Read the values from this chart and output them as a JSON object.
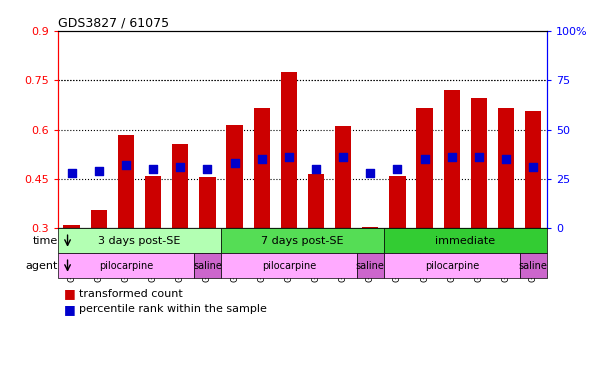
{
  "title": "GDS3827 / 61075",
  "samples": [
    "GSM367527",
    "GSM367528",
    "GSM367531",
    "GSM367532",
    "GSM367534",
    "GSM367718",
    "GSM367536",
    "GSM367538",
    "GSM367539",
    "GSM367540",
    "GSM367541",
    "GSM367719",
    "GSM367545",
    "GSM367546",
    "GSM367548",
    "GSM367549",
    "GSM367551",
    "GSM367721"
  ],
  "transformed_count": [
    0.31,
    0.355,
    0.585,
    0.46,
    0.555,
    0.455,
    0.615,
    0.665,
    0.775,
    0.465,
    0.61,
    0.305,
    0.46,
    0.665,
    0.72,
    0.695,
    0.665,
    0.655
  ],
  "percentile_rank": [
    28,
    29,
    32,
    30,
    31,
    30,
    33,
    35,
    36,
    30,
    36,
    28,
    30,
    35,
    36,
    36,
    35,
    31
  ],
  "bar_color": "#cc0000",
  "dot_color": "#0000cc",
  "ylim_left": [
    0.3,
    0.9
  ],
  "ylim_right": [
    0,
    100
  ],
  "yticks_left": [
    0.3,
    0.45,
    0.6,
    0.75,
    0.9
  ],
  "yticks_right": [
    0,
    25,
    50,
    75,
    100
  ],
  "ytick_labels_left": [
    "0.3",
    "0.45",
    "0.6",
    "0.75",
    "0.9"
  ],
  "ytick_labels_right": [
    "0",
    "25",
    "50",
    "75",
    "100%"
  ],
  "time_data": [
    {
      "label": "3 days post-SE",
      "start": 0,
      "end": 6,
      "color": "#b3ffb3"
    },
    {
      "label": "7 days post-SE",
      "start": 6,
      "end": 12,
      "color": "#55dd55"
    },
    {
      "label": "immediate",
      "start": 12,
      "end": 18,
      "color": "#33cc33"
    }
  ],
  "agent_data": [
    {
      "label": "pilocarpine",
      "start": 0,
      "end": 5,
      "color": "#ffaaff"
    },
    {
      "label": "saline",
      "start": 5,
      "end": 6,
      "color": "#cc66cc"
    },
    {
      "label": "pilocarpine",
      "start": 6,
      "end": 11,
      "color": "#ffaaff"
    },
    {
      "label": "saline",
      "start": 11,
      "end": 12,
      "color": "#cc66cc"
    },
    {
      "label": "pilocarpine",
      "start": 12,
      "end": 17,
      "color": "#ffaaff"
    },
    {
      "label": "saline",
      "start": 17,
      "end": 18,
      "color": "#cc66cc"
    }
  ],
  "bar_width": 0.6,
  "dot_size": 30,
  "background_color": "#ffffff",
  "grid_color": "#000000"
}
